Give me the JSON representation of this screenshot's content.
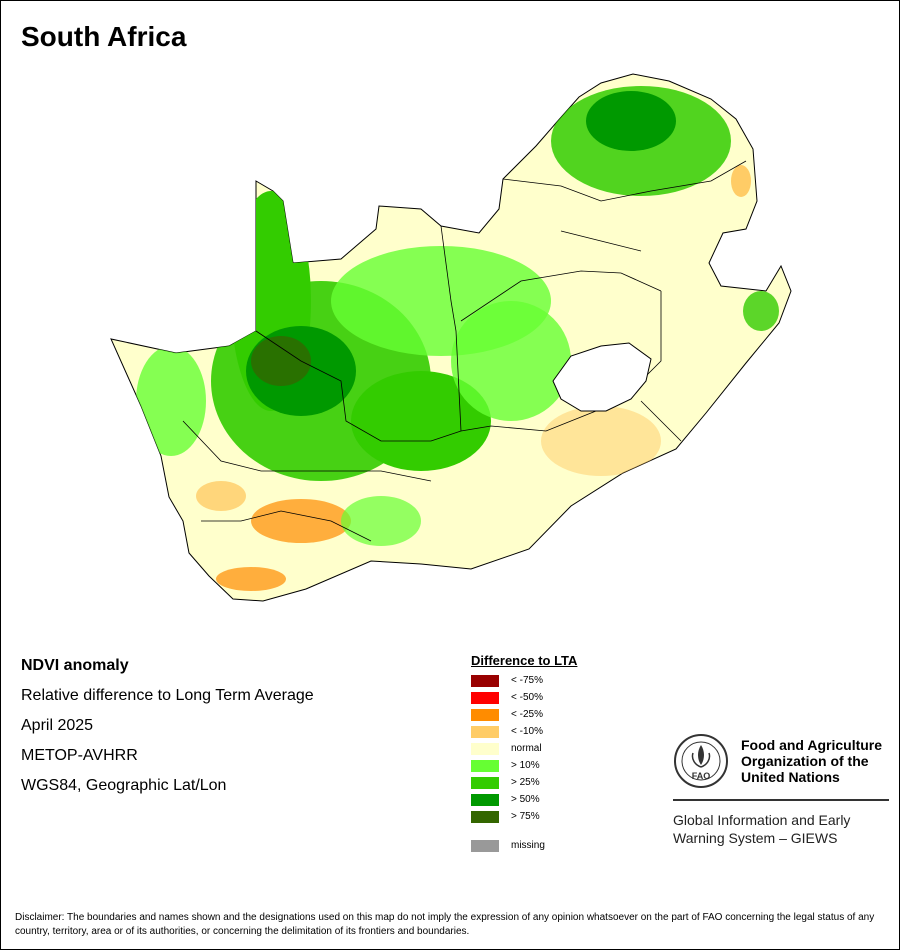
{
  "map": {
    "title": "South Africa"
  },
  "info": {
    "heading": "NDVI anomaly",
    "lines": [
      "Relative difference to Long Term Average",
      "April 2025",
      "METOP-AVHRR",
      "WGS84, Geographic Lat/Lon"
    ]
  },
  "legend": {
    "title": "Difference to LTA",
    "items": [
      {
        "label": "< -75%",
        "color": "#990000"
      },
      {
        "label": "< -50%",
        "color": "#ff0000"
      },
      {
        "label": "< -25%",
        "color": "#ff8c00"
      },
      {
        "label": "< -10%",
        "color": "#ffcc66"
      },
      {
        "label": "normal",
        "color": "#ffffcc"
      },
      {
        "label": "> 10%",
        "color": "#66ff33"
      },
      {
        "label": "> 25%",
        "color": "#33cc00"
      },
      {
        "label": "> 50%",
        "color": "#009900"
      },
      {
        "label": "> 75%",
        "color": "#336600"
      }
    ],
    "missing": {
      "label": "missing",
      "color": "#999999"
    }
  },
  "logo": {
    "org_lines": [
      "Food and Agriculture",
      "Organization of the",
      "United Nations"
    ],
    "giews_lines": [
      "Global Information and Early",
      "Warning System – GIEWS"
    ],
    "emblem_text": "FAO"
  },
  "disclaimer": "Disclaimer: The boundaries and names shown and the designations used on this map do not imply the expression of any opinion whatsoever on the part of FAO concerning the legal status of any country, territory, area or of its authorities, or concerning the delimitation of its frontiers and boundaries."
}
